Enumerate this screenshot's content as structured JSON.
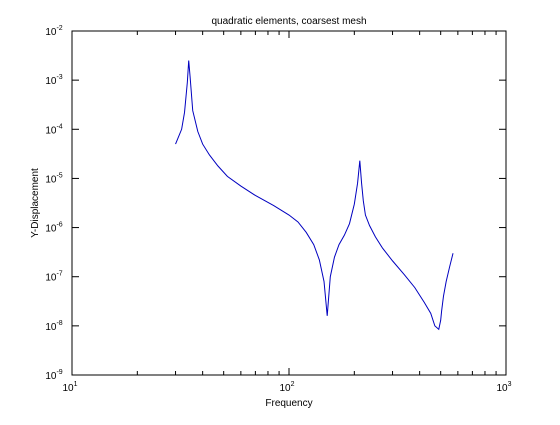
{
  "chart_data": {
    "type": "line",
    "title": "quadratic elements, coarsest mesh",
    "xlabel": "Frequency",
    "ylabel": "Y-Displacement",
    "xscale": "log",
    "yscale": "log",
    "xlim": [
      10,
      1000
    ],
    "ylim": [
      1e-09,
      0.01
    ],
    "grid": false,
    "line_color": "#0000c0",
    "x_ticks": [
      {
        "value": 10,
        "base": "10",
        "exp": "1"
      },
      {
        "value": 100,
        "base": "10",
        "exp": "2"
      },
      {
        "value": 1000,
        "base": "10",
        "exp": "3"
      }
    ],
    "y_ticks": [
      {
        "value": 1e-09,
        "base": "10",
        "exp": "-9"
      },
      {
        "value": 1e-08,
        "base": "10",
        "exp": "-8"
      },
      {
        "value": 1e-07,
        "base": "10",
        "exp": "-7"
      },
      {
        "value": 1e-06,
        "base": "10",
        "exp": "-6"
      },
      {
        "value": 1e-05,
        "base": "10",
        "exp": "-5"
      },
      {
        "value": 0.0001,
        "base": "10",
        "exp": "-4"
      },
      {
        "value": 0.001,
        "base": "10",
        "exp": "-3"
      },
      {
        "value": 0.01,
        "base": "10",
        "exp": "-2"
      }
    ],
    "series": [
      {
        "x": [
          30,
          32,
          33,
          34,
          34.5,
          35,
          36,
          38,
          40,
          43,
          47,
          52,
          60,
          70,
          85,
          100,
          110,
          120,
          130,
          138,
          145,
          150,
          155,
          162,
          170,
          180,
          190,
          200,
          207,
          212,
          216,
          220,
          225,
          235,
          250,
          270,
          300,
          340,
          380,
          420,
          450,
          470,
          490,
          500,
          505,
          515,
          530,
          550,
          570
        ],
        "y": [
          5e-05,
          0.0001,
          0.00022,
          0.0009,
          0.0025,
          0.0012,
          0.00024,
          9e-05,
          5e-05,
          3e-05,
          1.8e-05,
          1.1e-05,
          7e-06,
          4.5e-06,
          2.8e-06,
          1.8e-06,
          1.3e-06,
          8e-07,
          4.5e-07,
          2.2e-07,
          8e-08,
          1.6e-08,
          1e-07,
          2.5e-07,
          4.5e-07,
          7e-07,
          1.2e-06,
          3e-06,
          8e-06,
          2.3e-05,
          8e-06,
          3.5e-06,
          1.8e-06,
          1.1e-06,
          6.5e-07,
          3.8e-07,
          2.1e-07,
          1.1e-07,
          6e-08,
          3e-08,
          1.8e-08,
          1e-08,
          8.5e-09,
          1.3e-08,
          2e-08,
          4e-08,
          8e-08,
          1.6e-07,
          3e-07
        ]
      }
    ]
  }
}
